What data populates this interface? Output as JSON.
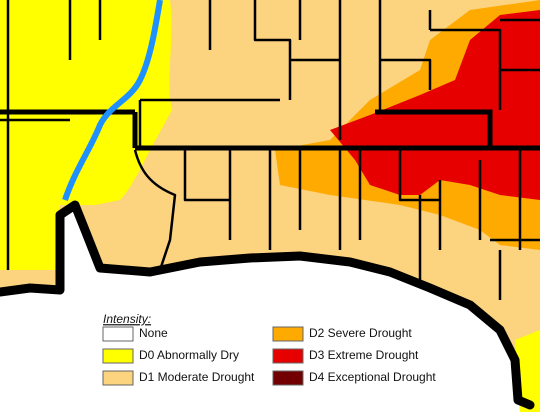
{
  "legend": {
    "title": "Intensity:",
    "items": [
      {
        "label": "None",
        "color": "#ffffff"
      },
      {
        "label": "D0 Abnormally Dry",
        "color": "#ffff00"
      },
      {
        "label": "D1 Moderate Drought",
        "color": "#fcd37f"
      },
      {
        "label": "D2 Severe Drought",
        "color": "#ffaa00"
      },
      {
        "label": "D3 Extreme Drought",
        "color": "#e60000"
      },
      {
        "label": "D4 Exceptional Drought",
        "color": "#730000"
      }
    ]
  }
}
